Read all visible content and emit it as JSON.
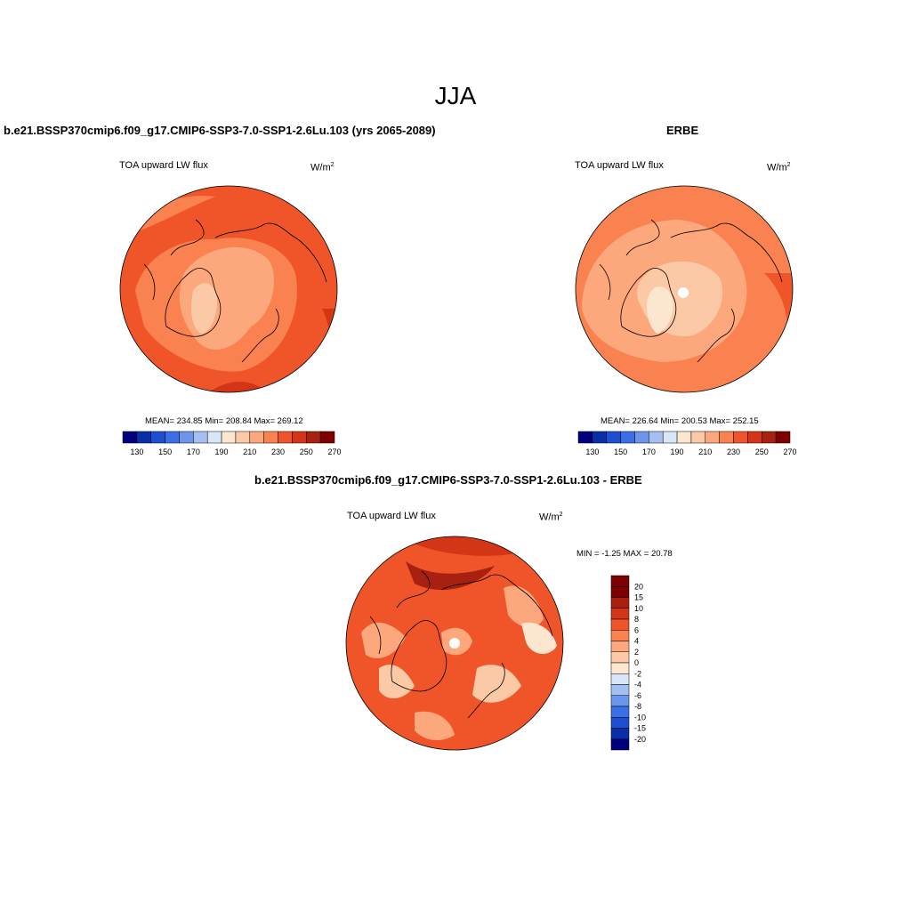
{
  "figure": {
    "season": "JJA"
  },
  "panels": [
    {
      "title": "b.e21.BSSP370cmip6.f09_g17.CMIP6-SSP3-7.0-SSP1-2.6Lu.103 (yrs 2065-2089)",
      "variable": "TOA upward LW flux",
      "units_base": "W/m",
      "units_exp": "2",
      "stats": "MEAN= 234.85  Min= 208.84  Max= 269.12",
      "colorbar_labels": [
        "130",
        "150",
        "170",
        "190",
        "210",
        "230",
        "250",
        "270"
      ]
    },
    {
      "title": "ERBE",
      "variable": "TOA upward LW flux",
      "units_base": "W/m",
      "units_exp": "2",
      "stats": "MEAN= 226.64  Min= 200.53  Max= 252.15",
      "colorbar_labels": [
        "130",
        "150",
        "170",
        "190",
        "210",
        "230",
        "250",
        "270"
      ]
    },
    {
      "title": "b.e21.BSSP370cmip6.f09_g17.CMIP6-SSP3-7.0-SSP1-2.6Lu.103 - ERBE",
      "variable": "TOA upward LW flux",
      "units_base": "W/m",
      "units_exp": "2",
      "stats": "MIN =  -1.25 MAX =  20.78",
      "colorbar_labels": [
        "20",
        "15",
        "10",
        "8",
        "6",
        "4",
        "2",
        "0",
        "-2",
        "-4",
        "-6",
        "-8",
        "-10",
        "-15",
        "-20"
      ]
    }
  ],
  "colors": {
    "abs_scale": [
      "#00007f",
      "#0a2ea8",
      "#1c4fd1",
      "#3a6fe6",
      "#6c95ec",
      "#a4bff2",
      "#d8e6f8",
      "#fde6cf",
      "#fcc9a6",
      "#fca87c",
      "#fa8150",
      "#f0552a",
      "#d23617",
      "#a8200f",
      "#7f0000"
    ],
    "diff_scale": [
      "#7f0000",
      "#a8200f",
      "#d23617",
      "#f0552a",
      "#fa8150",
      "#fca87c",
      "#fcc9a6",
      "#fde6cf",
      "#d8e6f8",
      "#a4bff2",
      "#6c95ec",
      "#3a6fe6",
      "#1c4fd1",
      "#0a2ea8",
      "#00007f"
    ]
  }
}
